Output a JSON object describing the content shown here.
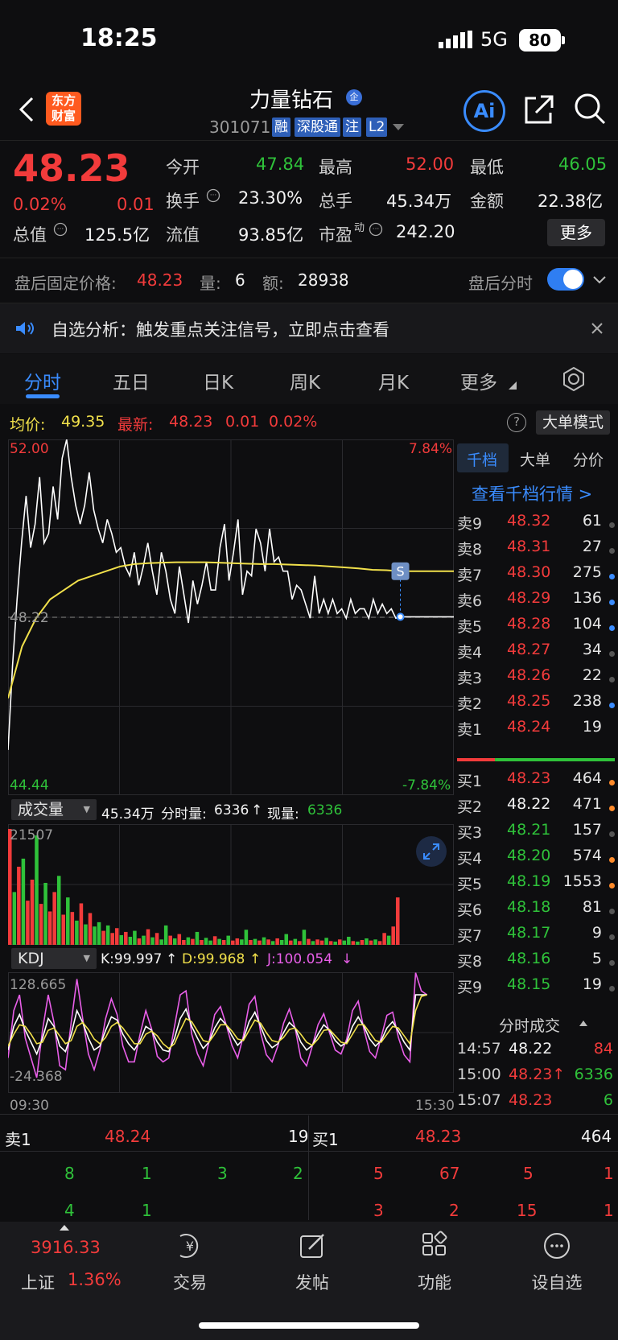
{
  "status_bar": {
    "time": "18:25",
    "network": "5G",
    "battery": "80"
  },
  "header": {
    "stock_name": "力量钻石",
    "name_badge": "企",
    "stock_code": "301071",
    "tags": [
      "融",
      "深股通",
      "注",
      "L2"
    ],
    "logo_line1": "东方",
    "logo_line2": "财富",
    "ai_label": "Ai"
  },
  "quote": {
    "price": "48.23",
    "change_pct": "0.02%",
    "change": "0.01",
    "open_label": "今开",
    "open": "47.84",
    "high_label": "最高",
    "high": "52.00",
    "low_label": "最低",
    "low": "46.05",
    "turnover_label": "换手",
    "turnover": "23.30%",
    "volume_label": "总手",
    "volume": "45.34万",
    "amount_label": "金额",
    "amount": "22.38亿",
    "mcap_label": "总值",
    "mcap": "125.5亿",
    "float_label": "流值",
    "float_mcap": "93.85亿",
    "pe_label": "市盈",
    "pe_sup": "动",
    "pe": "242.20",
    "more_button": "更多"
  },
  "after_hours": {
    "price_label": "盘后固定价格:",
    "price": "48.23",
    "qty_label": "量:",
    "qty": "6",
    "amount_label": "额:",
    "amount": "28938",
    "toggle_label": "盘后分时"
  },
  "notice": {
    "text": "自选分析：触发重点关注信号，立即点击查看"
  },
  "tabs": [
    "分时",
    "五日",
    "日K",
    "周K",
    "月K",
    "更多"
  ],
  "price_summary": {
    "avg_label": "均价:",
    "avg": "49.35",
    "last_label": "最新:",
    "last": "48.23",
    "change": "0.01",
    "change_pct": "0.02%",
    "big_order_button": "大单模式",
    "help": "?"
  },
  "colors": {
    "up": "#f23b3b",
    "down": "#2fc23a",
    "accent": "#3a8cff",
    "price_line": "#ffffff",
    "avg_line": "#f1e04b",
    "k_line": "#ffffff",
    "d_line": "#f1e04b",
    "j_line": "#e85ee8"
  },
  "chart_data": [
    {
      "type": "line",
      "title": "分时",
      "ylim": [
        44.44,
        52.0
      ],
      "y_top_label": "52.00",
      "y_bottom_label": "44.44",
      "pct_top_label": "7.84%",
      "pct_bottom_label": "-7.84%",
      "prev_close_label": "48.22",
      "x_start": "09:30",
      "x_end": "15:30",
      "series": [
        {
          "name": "价格",
          "values": [
            45.4,
            47.2,
            48.6,
            49.8,
            50.8,
            49.7,
            50.2,
            51.2,
            49.8,
            50.0,
            51.0,
            50.3,
            51.6,
            52.0,
            51.2,
            50.6,
            50.2,
            50.6,
            51.3,
            50.5,
            50.1,
            49.8,
            50.3,
            50.0,
            49.6,
            49.7,
            49.3,
            49.1,
            49.6,
            48.9,
            49.3,
            49.8,
            49.2,
            48.7,
            49.6,
            49.2,
            48.6,
            48.3,
            49.3,
            48.7,
            48.1,
            49.0,
            48.5,
            48.9,
            49.4,
            48.8,
            48.8,
            49.7,
            50.2,
            49.0,
            49.6,
            50.3,
            48.7,
            49.2,
            49.1,
            50.1,
            49.8,
            49.2,
            50.1,
            49.4,
            49.5,
            49.2,
            49.2,
            48.6,
            48.9,
            48.8,
            48.5,
            48.2,
            49.1,
            48.3,
            48.6,
            48.3,
            48.6,
            48.3,
            48.4,
            48.2,
            48.6,
            48.3,
            48.4,
            48.4,
            48.2,
            48.6,
            48.3,
            48.5,
            48.3,
            48.4,
            48.2,
            48.23
          ]
        },
        {
          "name": "均价",
          "values": [
            46.5,
            47.6,
            48.2,
            48.6,
            48.8,
            49.0,
            49.1,
            49.2,
            49.3,
            49.35,
            49.37,
            49.38,
            49.39,
            49.39,
            49.39,
            49.38,
            49.37,
            49.36,
            49.35,
            49.35,
            49.34,
            49.33,
            49.32,
            49.3,
            49.28,
            49.26,
            49.23,
            49.22,
            49.2
          ]
        }
      ],
      "after_hours_marker": "S"
    },
    {
      "type": "bar",
      "title": "成交量",
      "summary": "45.34万",
      "period_label": "分时量:",
      "period_value": "6336",
      "current_label": "现量:",
      "current_value": "6336",
      "ymax_label": "21507",
      "values": [
        21507,
        9800,
        14500,
        16000,
        8200,
        12100,
        20300,
        7600,
        11500,
        6200,
        9800,
        12800,
        5600,
        8800,
        6100,
        4500,
        7700,
        3800,
        5900,
        3400,
        4200,
        2600,
        3600,
        2200,
        3100,
        1800,
        2400,
        1500,
        2600,
        1200,
        1700,
        2900,
        1400,
        2200,
        1000,
        3600,
        1700,
        1200,
        2000,
        900,
        1400,
        1100,
        2400,
        900,
        1300,
        800,
        1600,
        1100,
        900,
        1700,
        800,
        1200,
        1000,
        2800,
        900,
        1100,
        800,
        1400,
        1000,
        700,
        1200,
        900,
        2000,
        800,
        1100,
        700,
        2800,
        1100,
        700,
        1000,
        800,
        1300,
        700,
        600,
        1000,
        800,
        1500,
        700,
        600,
        900,
        1200,
        800,
        1000,
        700,
        2200,
        1700,
        3400,
        8800
      ],
      "up_flags": [
        1,
        0,
        1,
        0,
        1,
        1,
        0,
        1,
        0,
        1,
        1,
        0,
        1,
        0,
        1,
        0,
        1,
        0,
        1,
        0,
        0,
        1,
        0,
        1,
        1,
        0,
        1,
        0,
        0,
        1,
        0,
        1,
        0,
        1,
        0,
        0,
        1,
        0,
        1,
        1,
        0,
        1,
        0,
        1,
        0,
        0,
        1,
        0,
        1,
        0,
        1,
        1,
        0,
        0,
        1,
        0,
        1,
        0,
        1,
        0,
        1,
        0,
        0,
        1,
        0,
        1,
        0,
        1,
        0,
        1,
        1,
        0,
        1,
        0,
        1,
        0,
        0,
        1,
        0,
        1,
        0,
        1,
        0,
        1,
        1,
        0,
        1,
        1
      ]
    },
    {
      "type": "line",
      "title": "KDJ",
      "k_label": "K:99.997",
      "d_label": "D:99.968",
      "j_label": "J:100.054",
      "ymax_label": "128.665",
      "ymin_label": "-24.368",
      "ylim": [
        -24.368,
        128.665
      ],
      "series": [
        {
          "name": "K",
          "values": [
            30,
            60,
            75,
            55,
            40,
            25,
            45,
            70,
            60,
            35,
            28,
            50,
            80,
            65,
            45,
            30,
            35,
            55,
            72,
            68,
            50,
            38,
            30,
            42,
            60,
            55,
            40,
            30,
            28,
            45,
            70,
            82,
            60,
            45,
            32,
            40,
            58,
            70,
            62,
            48,
            36,
            44,
            66,
            78,
            60,
            42,
            33,
            38,
            52,
            65,
            58,
            40,
            30,
            36,
            50,
            62,
            55,
            42,
            35,
            40,
            60,
            72,
            60,
            44,
            35,
            42,
            58,
            66,
            54,
            40,
            30,
            100,
            100,
            100
          ]
        },
        {
          "name": "D",
          "values": [
            35,
            50,
            62,
            60,
            50,
            38,
            40,
            55,
            58,
            48,
            38,
            42,
            60,
            65,
            56,
            44,
            38,
            46,
            60,
            65,
            58,
            48,
            38,
            38,
            50,
            54,
            48,
            38,
            32,
            38,
            55,
            70,
            66,
            54,
            42,
            40,
            50,
            62,
            62,
            54,
            44,
            42,
            55,
            68,
            64,
            52,
            42,
            40,
            46,
            56,
            58,
            50,
            40,
            36,
            44,
            55,
            56,
            48,
            40,
            38,
            50,
            62,
            62,
            52,
            42,
            40,
            50,
            60,
            58,
            48,
            38,
            80,
            98,
            100
          ]
        },
        {
          "name": "J",
          "values": [
            20,
            80,
            100,
            45,
            20,
            -5,
            55,
            100,
            65,
            10,
            5,
            65,
            120,
            70,
            25,
            5,
            30,
            70,
            95,
            75,
            35,
            15,
            15,
            50,
            80,
            57,
            22,
            15,
            20,
            60,
            100,
            105,
            50,
            25,
            10,
            40,
            75,
            85,
            62,
            36,
            20,
            48,
            88,
            98,
            52,
            24,
            15,
            35,
            64,
            82,
            58,
            20,
            10,
            35,
            62,
            76,
            52,
            30,
            25,
            44,
            80,
            92,
            56,
            28,
            20,
            46,
            74,
            78,
            46,
            24,
            15,
            128,
            105,
            100
          ]
        }
      ]
    }
  ],
  "order_book": {
    "tabs": [
      "千档",
      "大单",
      "分价"
    ],
    "link": "查看千档行情 >",
    "asks": [
      {
        "side": "卖9",
        "price": "48.32",
        "vol": "61",
        "dot": "gray"
      },
      {
        "side": "卖8",
        "price": "48.31",
        "vol": "27",
        "dot": "gray"
      },
      {
        "side": "卖7",
        "price": "48.30",
        "vol": "275",
        "dot": "blue"
      },
      {
        "side": "卖6",
        "price": "48.29",
        "vol": "136",
        "dot": "blue"
      },
      {
        "side": "卖5",
        "price": "48.28",
        "vol": "104",
        "dot": "blue"
      },
      {
        "side": "卖4",
        "price": "48.27",
        "vol": "34",
        "dot": "gray"
      },
      {
        "side": "卖3",
        "price": "48.26",
        "vol": "22",
        "dot": "gray"
      },
      {
        "side": "卖2",
        "price": "48.25",
        "vol": "238",
        "dot": "blue"
      },
      {
        "side": "卖1",
        "price": "48.24",
        "vol": "19",
        "dot": "none"
      }
    ],
    "bids": [
      {
        "side": "买1",
        "price": "48.23",
        "vol": "464",
        "dot": "orange",
        "color": "red"
      },
      {
        "side": "买2",
        "price": "48.22",
        "vol": "471",
        "dot": "orange",
        "color": "white"
      },
      {
        "side": "买3",
        "price": "48.21",
        "vol": "157",
        "dot": "gray",
        "color": "green"
      },
      {
        "side": "买4",
        "price": "48.20",
        "vol": "574",
        "dot": "orange",
        "color": "green"
      },
      {
        "side": "买5",
        "price": "48.19",
        "vol": "1553",
        "dot": "orange",
        "color": "green"
      },
      {
        "side": "买6",
        "price": "48.18",
        "vol": "81",
        "dot": "gray",
        "color": "green"
      },
      {
        "side": "买7",
        "price": "48.17",
        "vol": "9",
        "dot": "gray",
        "color": "green"
      },
      {
        "side": "买8",
        "price": "48.16",
        "vol": "5",
        "dot": "gray",
        "color": "green"
      },
      {
        "side": "买9",
        "price": "48.15",
        "vol": "19",
        "dot": "gray",
        "color": "green"
      }
    ],
    "buy_ratio": 0.2
  },
  "trades": {
    "title": "分时成交",
    "rows": [
      {
        "time": "14:57",
        "price": "48.22",
        "vol": "84",
        "pcolor": "white",
        "vcolor": "red"
      },
      {
        "time": "15:00",
        "price": "48.23↑",
        "vol": "6336",
        "pcolor": "red",
        "vcolor": "green"
      },
      {
        "time": "15:07",
        "price": "48.23",
        "vol": "6",
        "pcolor": "red",
        "vcolor": "green"
      }
    ]
  },
  "bottom_book": {
    "sell_label": "卖1",
    "sell_price": "48.24",
    "sell_vol": "19",
    "buy_label": "买1",
    "buy_price": "48.23",
    "buy_vol": "464",
    "sell_row1": [
      "8",
      "1",
      "3",
      "2"
    ],
    "sell_row2": [
      "4",
      "1"
    ],
    "buy_row1": [
      "5",
      "67",
      "5",
      "1"
    ],
    "buy_row2": [
      "3",
      "2",
      "15",
      "1"
    ]
  },
  "bottom_nav": {
    "index_value": "3916.33",
    "index_name": "上证",
    "index_change": "1.36%",
    "items": [
      "交易",
      "发帖",
      "功能",
      "设自选"
    ]
  }
}
